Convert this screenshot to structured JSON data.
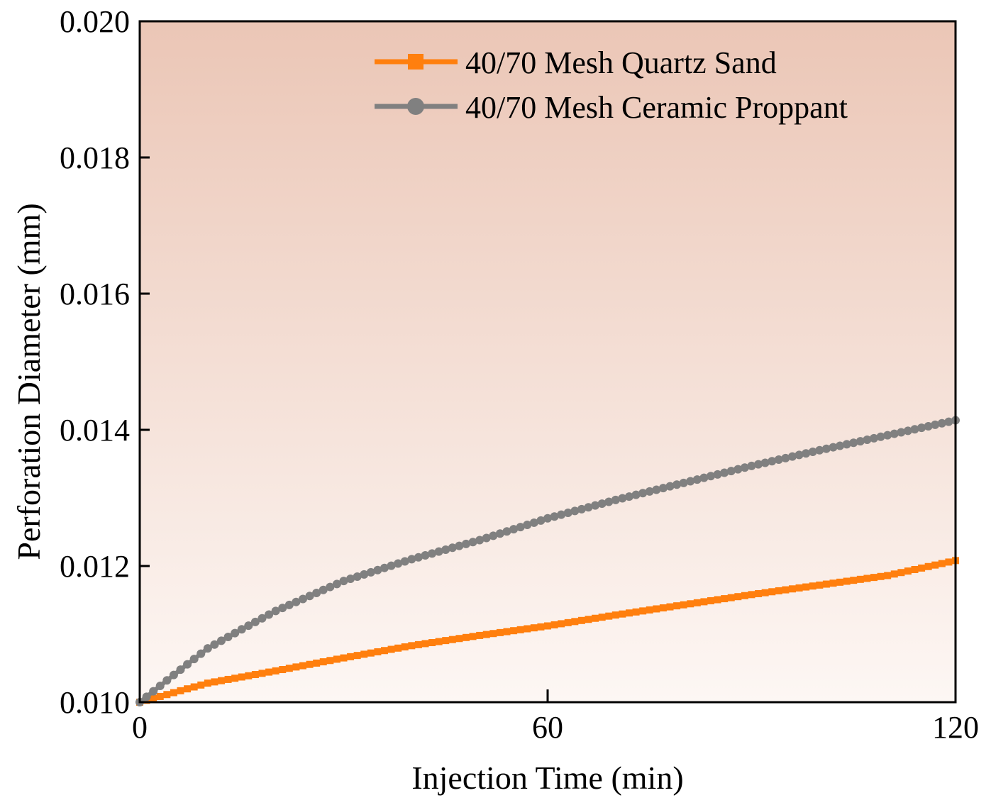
{
  "chart_data": {
    "type": "line",
    "title": "",
    "xlabel": "Injection Time (min)",
    "ylabel": "Perforation Diameter (mm)",
    "xlim": [
      0,
      120
    ],
    "ylim": [
      0.01,
      0.02
    ],
    "x_ticks": [
      0,
      60,
      120
    ],
    "x_tick_labels": [
      "0",
      "60",
      "120"
    ],
    "y_ticks": [
      0.01,
      0.012,
      0.014,
      0.016,
      0.018,
      0.02
    ],
    "y_tick_labels": [
      "0.010",
      "0.012",
      "0.014",
      "0.016",
      "0.018",
      "0.020"
    ],
    "grid": false,
    "legend_position": "top-right",
    "background_gradient": {
      "top": "#ebc6b6",
      "bottom": "#fdf7f4"
    },
    "series": [
      {
        "name": "40/70 Mesh Quartz Sand",
        "color": "#ff7f0e",
        "marker": "square",
        "x": [
          0,
          10,
          20,
          30,
          40,
          50,
          60,
          70,
          80,
          90,
          100,
          110,
          120
        ],
        "values": [
          0.01,
          0.01028,
          0.01046,
          0.01065,
          0.01083,
          0.01098,
          0.01112,
          0.01128,
          0.01143,
          0.01158,
          0.01172,
          0.01186,
          0.01208
        ]
      },
      {
        "name": "40/70 Mesh Ceramic Proppant",
        "color": "#808080",
        "marker": "circle",
        "x": [
          0,
          5,
          10,
          15,
          20,
          30,
          40,
          50,
          60,
          70,
          80,
          90,
          100,
          110,
          120
        ],
        "values": [
          0.01,
          0.0104,
          0.01079,
          0.01107,
          0.01134,
          0.01178,
          0.0121,
          0.01238,
          0.0127,
          0.01297,
          0.01322,
          0.01347,
          0.0137,
          0.01392,
          0.01414
        ]
      }
    ]
  }
}
